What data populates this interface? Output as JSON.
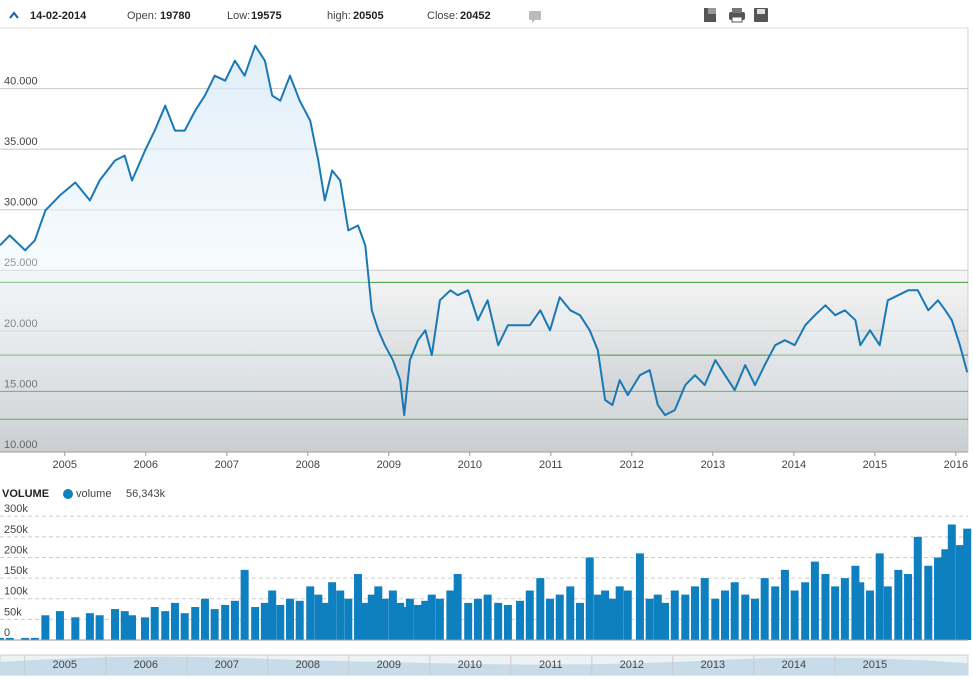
{
  "header": {
    "date": "14-02-2014",
    "fields": [
      {
        "label": "Open:",
        "value": 19780
      },
      {
        "label": "Low:",
        "value": 19575
      },
      {
        "label": "high:",
        "value": 20505
      },
      {
        "label": "Close:",
        "value": 20452
      }
    ]
  },
  "chart_data": [
    {
      "type": "line",
      "color": "#1a78b4",
      "x": [
        2004.2,
        2004.32,
        2004.51,
        2004.63,
        2004.76,
        2004.94,
        2005.13,
        2005.31,
        2005.43,
        2005.62,
        2005.74,
        2005.83,
        2005.99,
        2006.11,
        2006.24,
        2006.36,
        2006.48,
        2006.61,
        2006.73,
        2006.85,
        2006.98,
        2007.1,
        2007.22,
        2007.35,
        2007.47,
        2007.56,
        2007.66,
        2007.78,
        2007.9,
        2008.03,
        2008.13,
        2008.21,
        2008.3,
        2008.4,
        2008.5,
        2008.62,
        2008.71,
        2008.79,
        2008.87,
        2008.95,
        2009.05,
        2009.14,
        2009.19,
        2009.26,
        2009.36,
        2009.45,
        2009.53,
        2009.63,
        2009.76,
        2009.85,
        2009.98,
        2010.1,
        2010.22,
        2010.35,
        2010.47,
        2010.62,
        2010.74,
        2010.87,
        2010.99,
        2011.11,
        2011.24,
        2011.36,
        2011.48,
        2011.58,
        2011.67,
        2011.76,
        2011.85,
        2011.95,
        2012.1,
        2012.22,
        2012.32,
        2012.41,
        2012.53,
        2012.66,
        2012.78,
        2012.9,
        2013.03,
        2013.15,
        2013.27,
        2013.4,
        2013.52,
        2013.64,
        2013.77,
        2013.89,
        2014.01,
        2014.14,
        2014.26,
        2014.39,
        2014.51,
        2014.63,
        2014.76,
        2014.82,
        2014.94,
        2015.06,
        2015.16,
        2015.29,
        2015.41,
        2015.53,
        2015.66,
        2015.78,
        2015.87,
        2015.95,
        2016.05,
        2016.14
      ],
      "values": [
        27060,
        27880,
        26650,
        27470,
        29940,
        31180,
        32250,
        30770,
        32410,
        34060,
        34470,
        32410,
        34880,
        36530,
        38590,
        36530,
        36530,
        38180,
        39420,
        41060,
        40650,
        42300,
        41060,
        43540,
        42300,
        39420,
        39000,
        41060,
        39000,
        37360,
        34060,
        30770,
        33240,
        32410,
        28290,
        28700,
        27060,
        21700,
        20050,
        18820,
        17580,
        15930,
        13050,
        17580,
        19230,
        20050,
        18000,
        22520,
        23350,
        22940,
        23350,
        20880,
        22520,
        18820,
        20460,
        20460,
        20460,
        21700,
        20050,
        22770,
        21700,
        21290,
        20050,
        18410,
        14290,
        13870,
        15930,
        14700,
        16340,
        16750,
        13870,
        13050,
        13460,
        15520,
        16340,
        15520,
        17580,
        16340,
        15110,
        17170,
        15520,
        17170,
        18820,
        19230,
        18820,
        20460,
        21290,
        22110,
        21290,
        21700,
        20880,
        18820,
        20050,
        18820,
        22520,
        22940,
        23350,
        23350,
        21700,
        22520,
        21700,
        20880,
        18820,
        16590
      ],
      "xlim": [
        2004.2,
        2016.15
      ],
      "xticks": [
        2005,
        2006,
        2007,
        2008,
        2009,
        2010,
        2011,
        2012,
        2013,
        2014,
        2015,
        2016
      ],
      "ylim": [
        10000,
        45000
      ],
      "yticks": [
        {
          "value": 10000,
          "label": "10.000"
        },
        {
          "value": 15000,
          "label": "15.000"
        },
        {
          "value": 20000,
          "label": "20.000"
        },
        {
          "value": 25000,
          "label": "25.000"
        },
        {
          "value": 30000,
          "label": "30.000"
        },
        {
          "value": 35000,
          "label": "35.000"
        },
        {
          "value": 40000,
          "label": "40.000"
        }
      ],
      "hlines": [
        24000,
        18000,
        15000,
        12700
      ],
      "hline_color": "#3c9c3c",
      "grid": true
    },
    {
      "type": "bar",
      "title": "VOLUME",
      "last_value_label": "56,343k",
      "series": [
        {
          "name": "volume",
          "color": "#0e80c0",
          "values": [
            5000,
            5000,
            5000,
            5000,
            60000,
            70000,
            55000,
            65000,
            60000,
            75000,
            70000,
            60000,
            55000,
            80000,
            70000,
            90000,
            65000,
            80000,
            100000,
            75000,
            85000,
            95000,
            170000,
            80000,
            90000,
            120000,
            85000,
            100000,
            95000,
            130000,
            110000,
            90000,
            140000,
            120000,
            100000,
            160000,
            90000,
            110000,
            130000,
            100000,
            120000,
            90000,
            80000,
            100000,
            85000,
            95000,
            110000,
            100000,
            120000,
            160000,
            90000,
            100000,
            110000,
            90000,
            85000,
            95000,
            120000,
            150000,
            100000,
            110000,
            130000,
            90000,
            200000,
            110000,
            120000,
            100000,
            130000,
            120000,
            210000,
            100000,
            110000,
            90000,
            120000,
            110000,
            130000,
            150000,
            100000,
            120000,
            140000,
            110000,
            100000,
            150000,
            130000,
            170000,
            120000,
            140000,
            190000,
            160000,
            130000,
            150000,
            180000,
            140000,
            120000,
            210000,
            130000,
            170000,
            160000,
            250000,
            180000,
            200000,
            220000,
            280000,
            230000,
            270000
          ]
        }
      ],
      "x": [
        2004.2,
        2004.32,
        2004.51,
        2004.63,
        2004.76,
        2004.94,
        2005.13,
        2005.31,
        2005.43,
        2005.62,
        2005.74,
        2005.83,
        2005.99,
        2006.11,
        2006.24,
        2006.36,
        2006.48,
        2006.61,
        2006.73,
        2006.85,
        2006.98,
        2007.1,
        2007.22,
        2007.35,
        2007.47,
        2007.56,
        2007.66,
        2007.78,
        2007.9,
        2008.03,
        2008.13,
        2008.21,
        2008.3,
        2008.4,
        2008.5,
        2008.62,
        2008.71,
        2008.79,
        2008.87,
        2008.95,
        2009.05,
        2009.14,
        2009.19,
        2009.26,
        2009.36,
        2009.45,
        2009.53,
        2009.63,
        2009.76,
        2009.85,
        2009.98,
        2010.1,
        2010.22,
        2010.35,
        2010.47,
        2010.62,
        2010.74,
        2010.87,
        2010.99,
        2011.11,
        2011.24,
        2011.36,
        2011.48,
        2011.58,
        2011.67,
        2011.76,
        2011.85,
        2011.95,
        2012.1,
        2012.22,
        2012.32,
        2012.41,
        2012.53,
        2012.66,
        2012.78,
        2012.9,
        2013.03,
        2013.15,
        2013.27,
        2013.4,
        2013.52,
        2013.64,
        2013.77,
        2013.89,
        2014.01,
        2014.14,
        2014.26,
        2014.39,
        2014.51,
        2014.63,
        2014.76,
        2014.82,
        2014.94,
        2015.06,
        2015.16,
        2015.29,
        2015.41,
        2015.53,
        2015.66,
        2015.78,
        2015.87,
        2015.95,
        2016.05,
        2016.14
      ],
      "xlim": [
        2004.2,
        2016.15
      ],
      "ylim": [
        0,
        320000
      ],
      "yticks": [
        0,
        {
          "value": 50000,
          "label": "50k"
        },
        {
          "value": 100000,
          "label": "100k"
        },
        {
          "value": 150000,
          "label": "150k"
        },
        {
          "value": 200000,
          "label": "200k"
        },
        {
          "value": 250000,
          "label": "250k"
        },
        {
          "value": 300000,
          "label": "300k"
        }
      ],
      "grid": true
    }
  ]
}
